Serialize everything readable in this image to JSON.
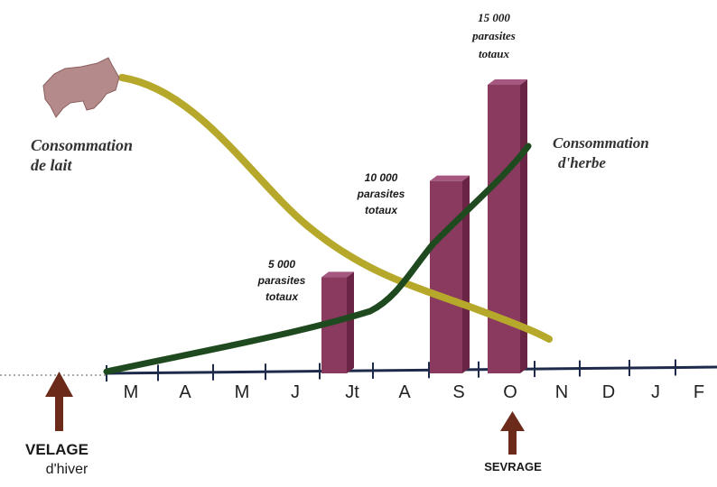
{
  "labels": {
    "milk": [
      "Consommation",
      "de lait"
    ],
    "grass": [
      "Consommation",
      "d'herbe"
    ],
    "bar1": [
      "5 000",
      "parasites",
      "totaux"
    ],
    "bar2": [
      "10 000",
      "parasites",
      "totaux"
    ],
    "bar3": [
      "15 000",
      "parasites",
      "totaux"
    ],
    "calving": [
      "VELAGE",
      "d'hiver"
    ],
    "weaning": "SEVRAGE"
  },
  "months": [
    "M",
    "A",
    "M",
    "J",
    "Jt",
    "A",
    "S",
    "O",
    "N",
    "D",
    "J",
    "F"
  ],
  "chart_data": {
    "type": "bar",
    "categories": [
      "Jt",
      "S",
      "O"
    ],
    "values": [
      5000,
      10000,
      15000
    ]
  },
  "colors": {
    "bar": "#8a3a5e",
    "milk_curve": "#b5a82a",
    "grass_curve": "#1f4a1f",
    "arrow": "#6b2a1a",
    "cow": "#b58a8a"
  },
  "icons": {
    "cow": "cow-silhouette-icon",
    "calving_arrow": "up-arrow-icon",
    "weaning_arrow": "up-arrow-icon"
  }
}
